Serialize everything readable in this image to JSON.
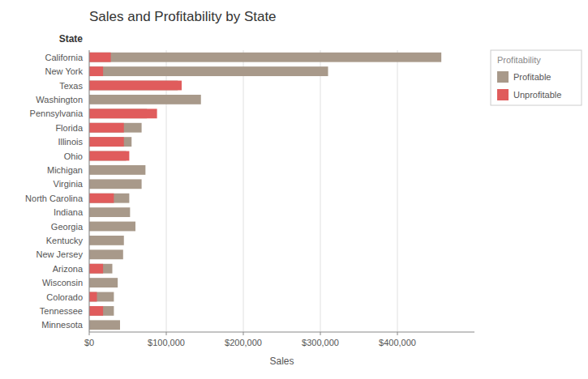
{
  "chart_data": {
    "type": "bar",
    "orientation": "horizontal",
    "stacked": false,
    "title": "Sales and Profitability by State",
    "xlabel": "Sales",
    "ylabel": "State",
    "legend_title": "Profitability",
    "categories": [
      "California",
      "New York",
      "Texas",
      "Washington",
      "Pennsylvania",
      "Florida",
      "Illinois",
      "Ohio",
      "Michigan",
      "Virginia",
      "North Carolina",
      "Indiana",
      "Georgia",
      "Kentucky",
      "New Jersey",
      "Arizona",
      "Wisconsin",
      "Colorado",
      "Tennessee",
      "Minnesota"
    ],
    "series": [
      {
        "name": "Profitable",
        "color": "#a8998a",
        "values": [
          457000,
          310000,
          115000,
          145000,
          75000,
          68000,
          55000,
          48000,
          73000,
          68000,
          52000,
          53000,
          60000,
          45000,
          44000,
          30000,
          37000,
          32000,
          32000,
          40000
        ]
      },
      {
        "name": "Unprofitable",
        "color": "#e05c5c",
        "values": [
          28000,
          18000,
          120000,
          0,
          88000,
          45000,
          45000,
          52000,
          0,
          0,
          32000,
          0,
          0,
          0,
          0,
          18000,
          0,
          10000,
          18000,
          0
        ]
      }
    ],
    "xlim": [
      0,
      500000
    ],
    "xticks": [
      {
        "value": 0,
        "label": "$0"
      },
      {
        "value": 100000,
        "label": "$100,000"
      },
      {
        "value": 200000,
        "label": "$200,000"
      },
      {
        "value": 300000,
        "label": "$300,000"
      },
      {
        "value": 400000,
        "label": "$400,000"
      }
    ],
    "grid": true,
    "legend": "right"
  }
}
